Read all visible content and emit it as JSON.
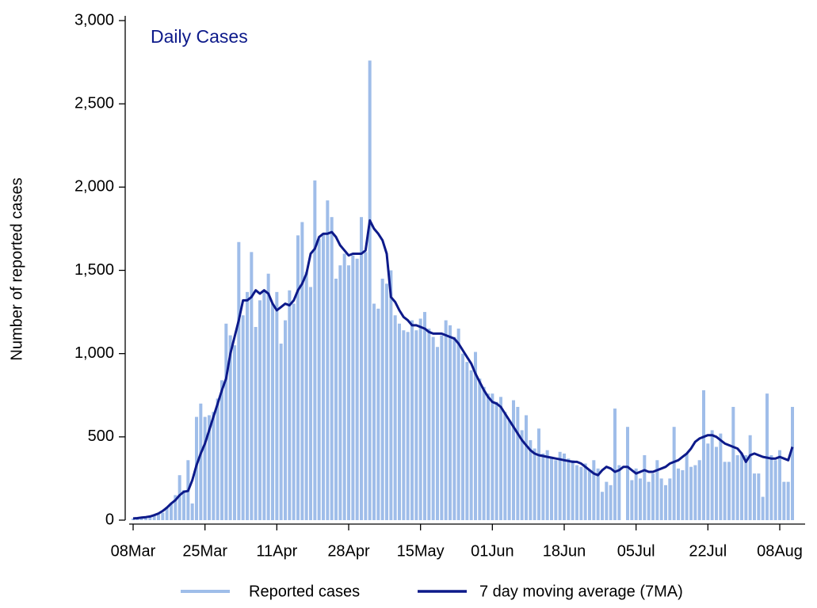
{
  "chart_data": {
    "type": "bar_line",
    "title": "Daily Cases",
    "y_label": "Number of reported cases",
    "categories": [
      "08Mar",
      null,
      null,
      null,
      null,
      null,
      null,
      null,
      null,
      null,
      null,
      null,
      null,
      null,
      null,
      null,
      null,
      "25Mar",
      null,
      null,
      null,
      null,
      null,
      null,
      null,
      null,
      null,
      null,
      null,
      null,
      null,
      null,
      null,
      null,
      "11Apr",
      null,
      null,
      null,
      null,
      null,
      null,
      null,
      null,
      null,
      null,
      null,
      null,
      null,
      null,
      null,
      null,
      "28Apr",
      null,
      null,
      null,
      null,
      null,
      null,
      null,
      null,
      null,
      null,
      null,
      null,
      null,
      null,
      null,
      null,
      "15May",
      null,
      null,
      null,
      null,
      null,
      null,
      null,
      null,
      null,
      null,
      null,
      null,
      null,
      null,
      null,
      null,
      "01Jun",
      null,
      null,
      null,
      null,
      null,
      null,
      null,
      null,
      null,
      null,
      null,
      null,
      null,
      null,
      null,
      null,
      "18Jun",
      null,
      null,
      null,
      null,
      null,
      null,
      null,
      null,
      null,
      null,
      null,
      null,
      null,
      null,
      null,
      null,
      "05Jul",
      null,
      null,
      null,
      null,
      null,
      null,
      null,
      null,
      null,
      null,
      null,
      null,
      null,
      null,
      null,
      null,
      "22Jul",
      null,
      null,
      null,
      null,
      null,
      null,
      null,
      null,
      null,
      null,
      null,
      null,
      null,
      null,
      null,
      null,
      "08Aug",
      null,
      null,
      null
    ],
    "series": [
      {
        "name": "Reported cases",
        "type": "bar",
        "color": "#9fbde9",
        "values": [
          10,
          10,
          15,
          15,
          20,
          25,
          35,
          45,
          80,
          100,
          150,
          270,
          180,
          360,
          100,
          620,
          700,
          620,
          630,
          650,
          730,
          840,
          1180,
          1110,
          1050,
          1670,
          1230,
          1370,
          1610,
          1160,
          1320,
          1370,
          1480,
          1300,
          1370,
          1060,
          1200,
          1380,
          1300,
          1710,
          1790,
          1490,
          1400,
          2040,
          1690,
          1720,
          1920,
          1820,
          1450,
          1530,
          1600,
          1530,
          1590,
          1570,
          1820,
          1610,
          2760,
          1300,
          1270,
          1450,
          1420,
          1500,
          1230,
          1180,
          1140,
          1130,
          1200,
          1140,
          1210,
          1250,
          1150,
          1100,
          1040,
          1110,
          1200,
          1170,
          1100,
          1150,
          1000,
          950,
          900,
          1010,
          850,
          800,
          760,
          760,
          710,
          740,
          650,
          600,
          720,
          680,
          540,
          630,
          480,
          430,
          550,
          400,
          420,
          370,
          360,
          410,
          400,
          370,
          360,
          330,
          320,
          340,
          300,
          360,
          310,
          170,
          230,
          210,
          670,
          330,
          0,
          560,
          240,
          310,
          250,
          390,
          230,
          280,
          360,
          250,
          210,
          250,
          560,
          310,
          300,
          400,
          320,
          330,
          360,
          780,
          460,
          540,
          440,
          520,
          350,
          350,
          680,
          390,
          400,
          390,
          510,
          280,
          280,
          140,
          760,
          390,
          360,
          420,
          230,
          230,
          680
        ]
      },
      {
        "name": "7 day moving average (7MA)",
        "type": "line",
        "color": "#0d1a8a",
        "values": [
          10,
          12,
          15,
          18,
          22,
          30,
          40,
          55,
          75,
          100,
          120,
          150,
          170,
          175,
          240,
          330,
          400,
          460,
          540,
          620,
          700,
          780,
          850,
          1000,
          1100,
          1200,
          1320,
          1320,
          1340,
          1380,
          1360,
          1380,
          1360,
          1300,
          1260,
          1280,
          1300,
          1290,
          1320,
          1380,
          1420,
          1480,
          1600,
          1630,
          1700,
          1720,
          1720,
          1730,
          1700,
          1650,
          1620,
          1590,
          1600,
          1600,
          1600,
          1620,
          1800,
          1750,
          1720,
          1680,
          1600,
          1340,
          1310,
          1260,
          1220,
          1200,
          1170,
          1170,
          1160,
          1150,
          1130,
          1120,
          1120,
          1120,
          1110,
          1100,
          1090,
          1060,
          1020,
          980,
          940,
          880,
          830,
          780,
          740,
          710,
          700,
          680,
          640,
          600,
          560,
          520,
          480,
          450,
          420,
          400,
          390,
          385,
          380,
          375,
          370,
          365,
          360,
          355,
          350,
          350,
          340,
          320,
          300,
          280,
          270,
          300,
          320,
          310,
          290,
          300,
          320,
          320,
          300,
          280,
          290,
          300,
          290,
          290,
          300,
          310,
          320,
          340,
          350,
          360,
          380,
          400,
          430,
          470,
          490,
          500,
          510,
          510,
          500,
          480,
          460,
          450,
          440,
          430,
          400,
          350,
          390,
          400,
          390,
          380,
          375,
          370,
          370,
          380,
          370,
          360,
          440
        ]
      }
    ],
    "ylim": [
      0,
      3000
    ],
    "yticks": [
      0,
      500,
      {
        "value": 1000,
        "label": "1,000"
      },
      {
        "value": 1500,
        "label": "1,500"
      },
      {
        "value": 2000,
        "label": "2,000"
      },
      {
        "value": 2500,
        "label": "2,500"
      },
      {
        "value": 3000,
        "label": "3,000"
      }
    ],
    "grid": false,
    "legend": "bottom"
  }
}
